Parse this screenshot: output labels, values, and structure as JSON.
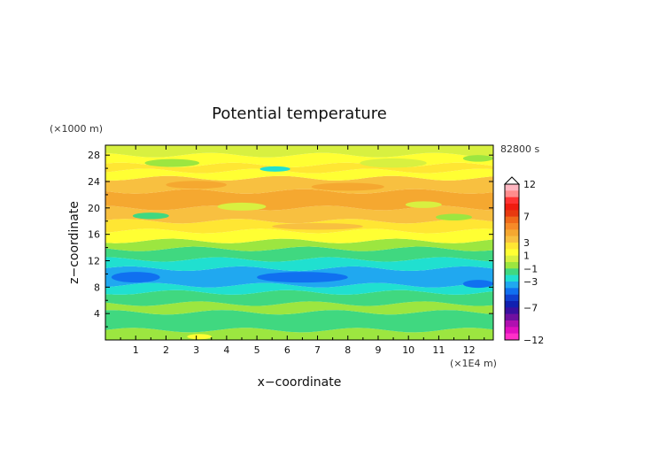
{
  "chart_data": {
    "type": "heatmap",
    "title": "Potential temperature",
    "xlabel": "x−coordinate",
    "ylabel": "z−coordinate",
    "x_unit": "(×1E4 m)",
    "y_unit": "(×1000 m)",
    "time_label": "82800 s",
    "xlim": [
      0,
      12.8
    ],
    "ylim": [
      0,
      29.5
    ],
    "x_ticks": [
      "1",
      "2",
      "3",
      "4",
      "5",
      "6",
      "7",
      "8",
      "9",
      "10",
      "11",
      "12"
    ],
    "y_ticks": [
      "4",
      "8",
      "12",
      "16",
      "20",
      "24",
      "28"
    ],
    "colorbar": {
      "tick_labels": [
        "12",
        "7",
        "3",
        "1",
        "−1",
        "−3",
        "−7",
        "−12"
      ],
      "levels": [
        12,
        11,
        10,
        9,
        8,
        7,
        6,
        5,
        4,
        3,
        2,
        1,
        0,
        -1,
        -2,
        -3,
        -4,
        -5,
        -6,
        -7,
        -8,
        -9,
        -10,
        -11,
        -12
      ],
      "colors": [
        "#ffb6c1",
        "#ff8c8c",
        "#ff3333",
        "#f01c10",
        "#e83a10",
        "#f06a1a",
        "#f68a28",
        "#f5a830",
        "#f8c040",
        "#ffe633",
        "#ffff33",
        "#d8f040",
        "#9ce640",
        "#40d880",
        "#20e0d0",
        "#20a8f0",
        "#1070f0",
        "#1040d0",
        "#1020b0",
        "#3a10a0",
        "#7010a0",
        "#b010b0",
        "#e010c0",
        "#ff30c8"
      ]
    },
    "bands": [
      {
        "z0": 0.0,
        "z1": 1.5,
        "level": -1
      },
      {
        "z0": 1.5,
        "z1": 4.2,
        "level": -2
      },
      {
        "z0": 4.2,
        "z1": 5.5,
        "level": -1
      },
      {
        "z0": 5.5,
        "z1": 7.2,
        "level": -2
      },
      {
        "z0": 7.2,
        "z1": 8.3,
        "level": -3
      },
      {
        "z0": 8.3,
        "z1": 10.8,
        "level": -4
      },
      {
        "z0": 10.8,
        "z1": 12.2,
        "level": -3
      },
      {
        "z0": 12.2,
        "z1": 13.8,
        "level": -2
      },
      {
        "z0": 13.8,
        "z1": 15.0,
        "level": -1
      },
      {
        "z0": 15.0,
        "z1": 16.5,
        "level": 1
      },
      {
        "z0": 16.5,
        "z1": 18.0,
        "level": 2
      },
      {
        "z0": 18.0,
        "z1": 20.0,
        "level": 3
      },
      {
        "z0": 20.0,
        "z1": 22.5,
        "level": 4
      },
      {
        "z0": 22.5,
        "z1": 24.5,
        "level": 3
      },
      {
        "z0": 24.5,
        "z1": 25.6,
        "level": 1
      },
      {
        "z0": 25.6,
        "z1": 26.5,
        "level": 2
      },
      {
        "z0": 26.5,
        "z1": 28.0,
        "level": 1
      },
      {
        "z0": 28.0,
        "z1": 29.5,
        "level": 0
      }
    ],
    "blobs": [
      {
        "x": 1.5,
        "z": 18.8,
        "rx": 0.6,
        "rz": 0.5,
        "level": -2
      },
      {
        "x": 4.5,
        "z": 20.2,
        "rx": 0.8,
        "rz": 0.6,
        "level": 0
      },
      {
        "x": 5.6,
        "z": 25.9,
        "rx": 0.5,
        "rz": 0.4,
        "level": -3
      },
      {
        "x": 10.5,
        "z": 20.5,
        "rx": 0.6,
        "rz": 0.5,
        "level": 0
      },
      {
        "x": 12.3,
        "z": 27.5,
        "rx": 0.5,
        "rz": 0.5,
        "level": -1
      },
      {
        "x": 8.0,
        "z": 23.2,
        "rx": 1.2,
        "rz": 0.6,
        "level": 4
      },
      {
        "x": 3.0,
        "z": 23.5,
        "rx": 1.0,
        "rz": 0.6,
        "level": 4
      },
      {
        "x": 9.5,
        "z": 26.8,
        "rx": 1.1,
        "rz": 0.7,
        "level": 0
      },
      {
        "x": 2.2,
        "z": 26.8,
        "rx": 0.9,
        "rz": 0.6,
        "level": -1
      },
      {
        "x": 6.5,
        "z": 9.5,
        "rx": 1.5,
        "rz": 0.8,
        "level": -5
      },
      {
        "x": 1.0,
        "z": 9.5,
        "rx": 0.8,
        "rz": 0.8,
        "level": -5
      },
      {
        "x": 12.3,
        "z": 8.5,
        "rx": 0.5,
        "rz": 0.6,
        "level": -5
      },
      {
        "x": 3.1,
        "z": 0.5,
        "rx": 0.4,
        "rz": 0.4,
        "level": 1
      },
      {
        "x": 7.0,
        "z": 17.2,
        "rx": 1.5,
        "rz": 0.5,
        "level": 3
      },
      {
        "x": 11.5,
        "z": 18.6,
        "rx": 0.6,
        "rz": 0.5,
        "level": -1
      }
    ]
  }
}
